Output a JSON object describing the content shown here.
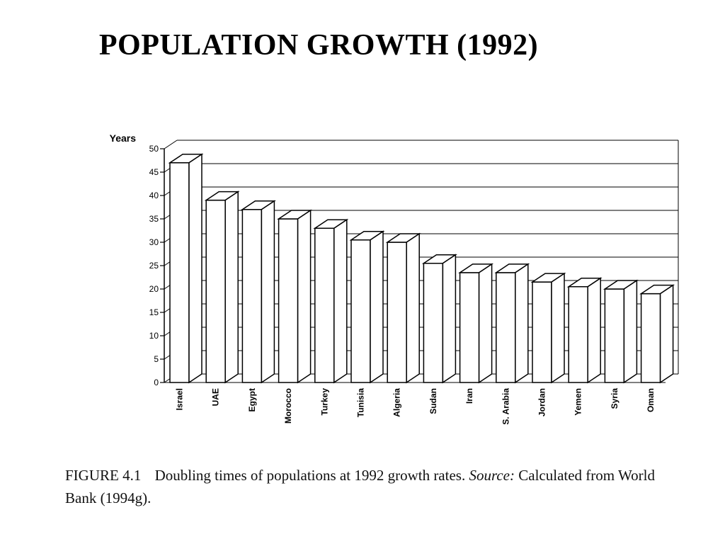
{
  "slide": {
    "title": "POPULATION GROWTH (1992)"
  },
  "caption": {
    "label": "FIGURE 4.1",
    "text": "Doubling times of populations at 1992 growth rates.",
    "source_label": "Source:",
    "source_text": "Calculated from World Bank (1994g)."
  },
  "chart_data": {
    "type": "bar",
    "ylabel": "Years",
    "ylim": [
      0,
      50
    ],
    "yticks": [
      0,
      5,
      10,
      15,
      20,
      25,
      30,
      35,
      40,
      45,
      50
    ],
    "categories": [
      "Israel",
      "UAE",
      "Egypt",
      "Morocco",
      "Turkey",
      "Tunisia",
      "Algeria",
      "Sudan",
      "Iran",
      "S. Arabia",
      "Jordan",
      "Yemen",
      "Syria",
      "Oman"
    ],
    "values": [
      47,
      39,
      37,
      35,
      33,
      30.5,
      30,
      25.5,
      23.5,
      23.5,
      21.5,
      20.5,
      20,
      19
    ],
    "style": "3d-columns",
    "bar_fill": "#ffffff",
    "stroke": "#000000"
  }
}
